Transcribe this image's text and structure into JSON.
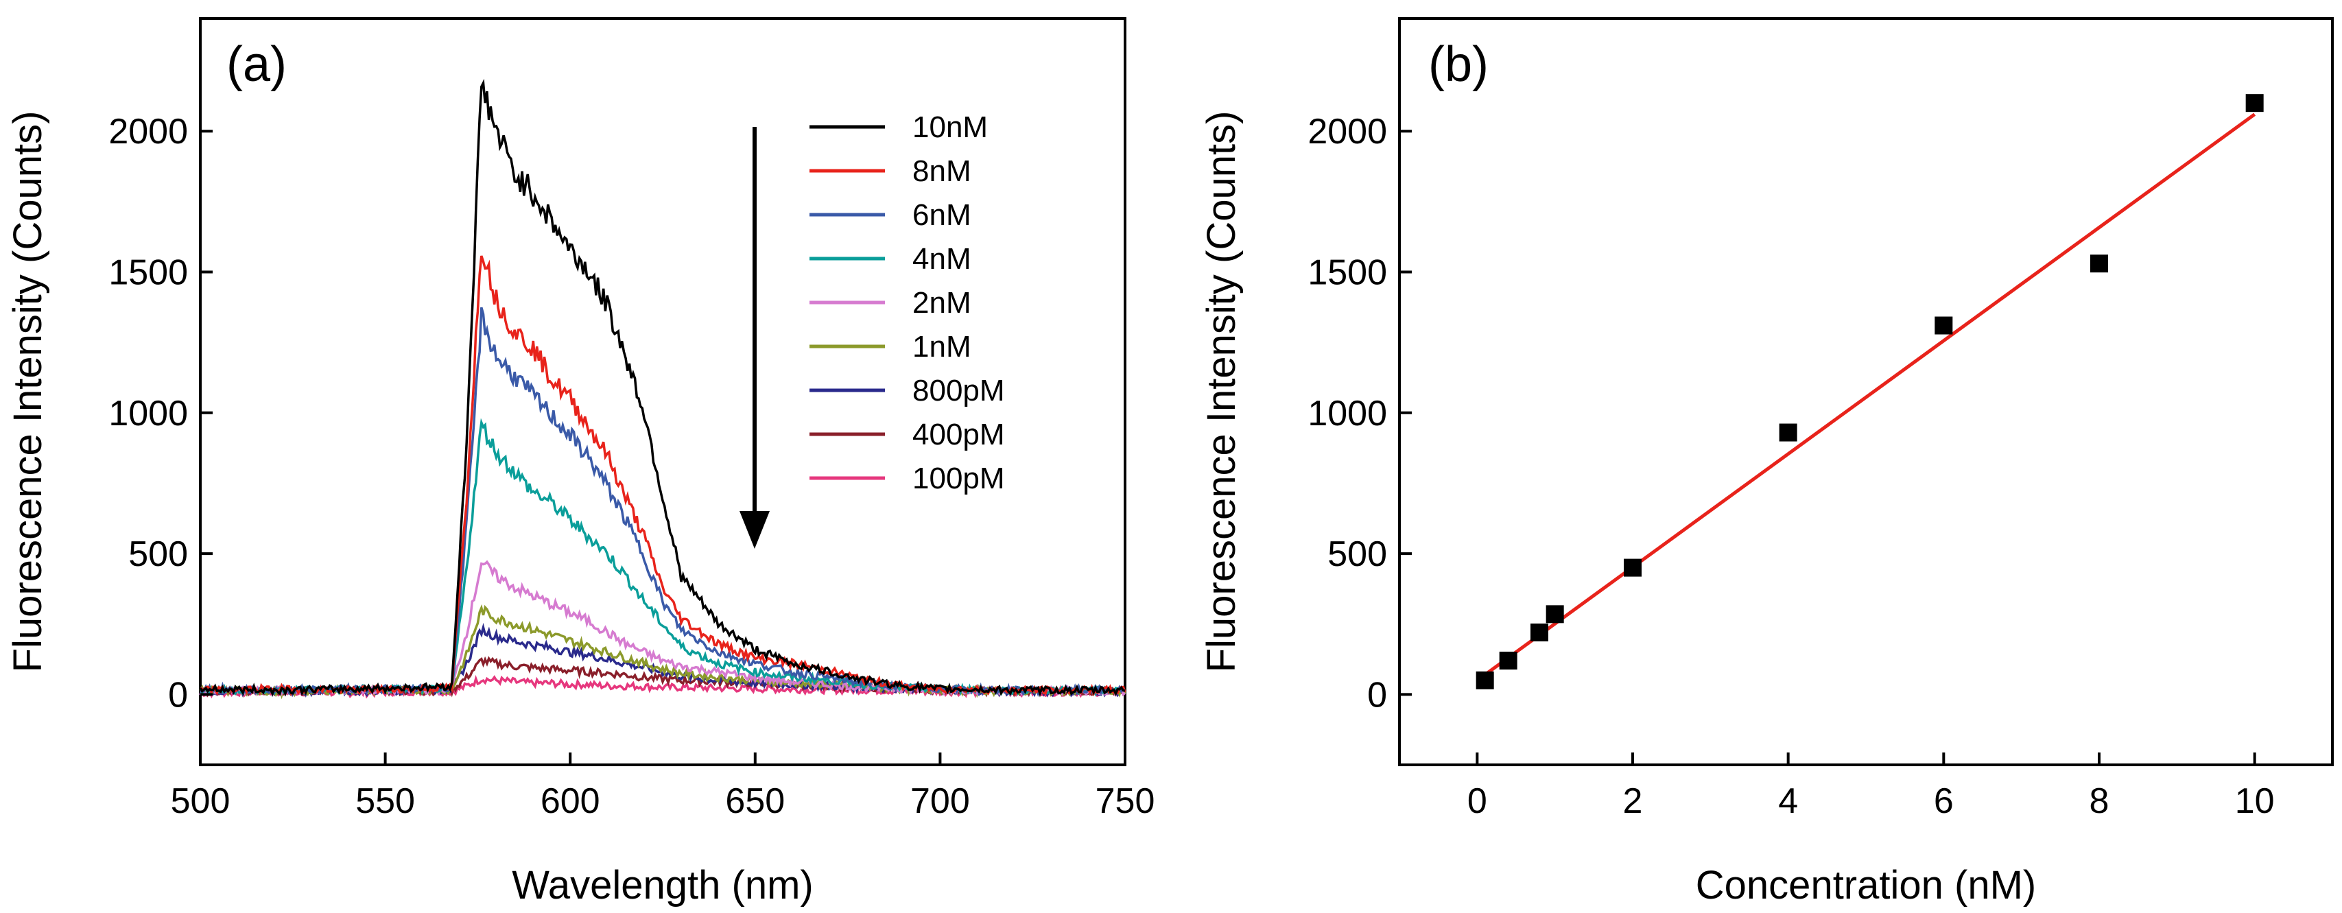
{
  "chart_data": [
    {
      "panel": "(a)",
      "type": "line",
      "xlabel": "Wavelength (nm)",
      "ylabel": "Fluorescence Intensity (Counts)",
      "xlim": [
        500,
        750
      ],
      "ylim": [
        -250,
        2400
      ],
      "xticks": [
        500,
        550,
        600,
        650,
        700,
        750
      ],
      "yticks": [
        0,
        500,
        1000,
        1500,
        2000
      ],
      "legend_position": "top-right",
      "annotation": "downward arrow indicating decreasing concentration",
      "series": [
        {
          "name": "10nM",
          "color": "#000000",
          "x": [
            500,
            520,
            540,
            560,
            568,
            572,
            576,
            580,
            585,
            590,
            595,
            600,
            605,
            610,
            615,
            620,
            625,
            630,
            640,
            650,
            660,
            670,
            680,
            690,
            700,
            720,
            750
          ],
          "values": [
            20,
            15,
            20,
            25,
            30,
            900,
            2170,
            2000,
            1850,
            1780,
            1680,
            1580,
            1500,
            1380,
            1200,
            1000,
            700,
            420,
            250,
            160,
            110,
            80,
            50,
            30,
            20,
            15,
            15
          ]
        },
        {
          "name": "8nM",
          "color": "#e8231b",
          "x": [
            500,
            520,
            540,
            560,
            568,
            572,
            576,
            580,
            585,
            590,
            595,
            600,
            605,
            610,
            615,
            620,
            625,
            630,
            640,
            650,
            660,
            670,
            680,
            690,
            700,
            720,
            750
          ],
          "values": [
            15,
            20,
            15,
            20,
            25,
            700,
            1600,
            1400,
            1290,
            1230,
            1120,
            1050,
            950,
            850,
            700,
            560,
            380,
            270,
            180,
            130,
            110,
            85,
            50,
            30,
            20,
            15,
            15
          ]
        },
        {
          "name": "6nM",
          "color": "#3a5aa8",
          "x": [
            500,
            520,
            540,
            560,
            568,
            572,
            576,
            580,
            585,
            590,
            595,
            600,
            605,
            610,
            615,
            620,
            625,
            630,
            640,
            650,
            660,
            670,
            680,
            690,
            700,
            720,
            750
          ],
          "values": [
            20,
            15,
            20,
            20,
            25,
            600,
            1340,
            1200,
            1130,
            1060,
            990,
            920,
            840,
            740,
            620,
            490,
            330,
            230,
            150,
            110,
            80,
            60,
            40,
            25,
            20,
            15,
            15
          ]
        },
        {
          "name": "4nM",
          "color": "#0a9e9a",
          "x": [
            500,
            520,
            540,
            560,
            568,
            572,
            576,
            580,
            585,
            590,
            595,
            600,
            605,
            610,
            615,
            620,
            625,
            630,
            640,
            650,
            660,
            670,
            680,
            690,
            700,
            720,
            750
          ],
          "values": [
            15,
            15,
            20,
            20,
            20,
            450,
            960,
            860,
            790,
            720,
            680,
            620,
            560,
            500,
            420,
            330,
            250,
            170,
            110,
            80,
            60,
            50,
            35,
            25,
            20,
            15,
            15
          ]
        },
        {
          "name": "2nM",
          "color": "#d67bd0",
          "x": [
            500,
            520,
            540,
            560,
            568,
            572,
            576,
            580,
            585,
            590,
            595,
            600,
            605,
            610,
            615,
            620,
            625,
            630,
            640,
            650,
            660,
            670,
            680,
            690,
            700,
            720,
            750
          ],
          "values": [
            10,
            15,
            15,
            15,
            20,
            220,
            470,
            420,
            380,
            350,
            320,
            290,
            260,
            220,
            180,
            150,
            120,
            100,
            80,
            60,
            45,
            35,
            25,
            20,
            15,
            15,
            10
          ]
        },
        {
          "name": "1nM",
          "color": "#8c9a2b",
          "x": [
            500,
            520,
            540,
            560,
            568,
            572,
            576,
            580,
            585,
            590,
            595,
            600,
            605,
            610,
            615,
            620,
            625,
            630,
            640,
            650,
            660,
            670,
            680,
            690,
            700,
            720,
            750
          ],
          "values": [
            15,
            10,
            15,
            15,
            15,
            140,
            300,
            270,
            250,
            230,
            210,
            190,
            170,
            150,
            130,
            110,
            90,
            75,
            60,
            50,
            40,
            35,
            25,
            20,
            15,
            12,
            10
          ]
        },
        {
          "name": "800pM",
          "color": "#2a2a8c",
          "x": [
            500,
            520,
            540,
            560,
            568,
            572,
            576,
            580,
            585,
            590,
            595,
            600,
            605,
            610,
            615,
            620,
            625,
            630,
            640,
            650,
            660,
            670,
            680,
            690,
            700,
            720,
            750
          ],
          "values": [
            10,
            15,
            10,
            15,
            15,
            110,
            230,
            205,
            190,
            175,
            165,
            150,
            140,
            125,
            110,
            95,
            80,
            65,
            50,
            40,
            35,
            30,
            25,
            20,
            15,
            10,
            10
          ]
        },
        {
          "name": "400pM",
          "color": "#8a1f2a",
          "x": [
            500,
            520,
            540,
            560,
            568,
            572,
            576,
            580,
            585,
            590,
            595,
            600,
            605,
            610,
            615,
            620,
            625,
            630,
            640,
            650,
            660,
            670,
            680,
            690,
            700,
            720,
            750
          ],
          "values": [
            10,
            10,
            15,
            10,
            15,
            60,
            120,
            110,
            100,
            95,
            90,
            85,
            80,
            75,
            70,
            60,
            55,
            50,
            45,
            40,
            35,
            30,
            25,
            20,
            15,
            10,
            10
          ]
        },
        {
          "name": "100pM",
          "color": "#e6377d",
          "x": [
            500,
            520,
            540,
            560,
            568,
            572,
            576,
            580,
            585,
            590,
            595,
            600,
            605,
            610,
            615,
            620,
            625,
            630,
            640,
            650,
            660,
            670,
            680,
            690,
            700,
            720,
            750
          ],
          "values": [
            5,
            10,
            5,
            10,
            10,
            30,
            55,
            50,
            45,
            40,
            40,
            35,
            35,
            30,
            30,
            28,
            25,
            25,
            22,
            20,
            18,
            16,
            15,
            12,
            10,
            8,
            8
          ]
        }
      ]
    },
    {
      "panel": "(b)",
      "type": "scatter",
      "xlabel": "Concentration (nM)",
      "ylabel": "Fluorescence Intensity (Counts)",
      "xlim": [
        -1,
        11
      ],
      "ylim": [
        -250,
        2400
      ],
      "xticks": [
        0,
        2,
        4,
        6,
        8,
        10
      ],
      "yticks": [
        0,
        500,
        1000,
        1500,
        2000
      ],
      "series": [
        {
          "name": "data",
          "color": "#000000",
          "x": [
            0.1,
            0.4,
            0.8,
            1,
            2,
            4,
            6,
            8,
            10
          ],
          "values": [
            50,
            120,
            220,
            285,
            450,
            930,
            1310,
            1530,
            2100
          ]
        }
      ],
      "fit": {
        "name": "linear fit",
        "color": "#e8231b",
        "x": [
          0.1,
          10
        ],
        "values": [
          70,
          2060
        ]
      }
    }
  ]
}
